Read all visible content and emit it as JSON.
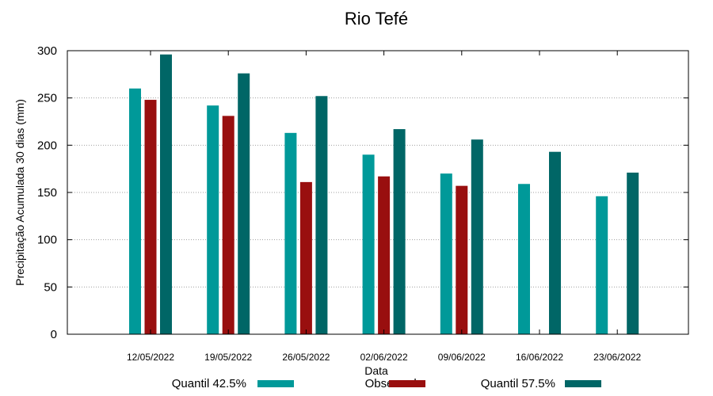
{
  "chart_data": {
    "type": "bar",
    "title": "Rio Tefé",
    "xlabel": "Data",
    "ylabel": "Precipitação Acumulada 30 dias (mm)",
    "ylim": [
      0,
      300
    ],
    "yticks": [
      0,
      50,
      100,
      150,
      200,
      250,
      300
    ],
    "grid": true,
    "legend_position": "bottom",
    "categories": [
      "12/05/2022",
      "19/05/2022",
      "26/05/2022",
      "02/06/2022",
      "09/06/2022",
      "16/06/2022",
      "23/06/2022"
    ],
    "series": [
      {
        "name": "Quantil 42.5%",
        "color": "#009999",
        "values": [
          260,
          242,
          213,
          190,
          170,
          159,
          146
        ]
      },
      {
        "name": "Observado",
        "color": "#990f0f",
        "values": [
          248,
          231,
          161,
          167,
          157,
          null,
          null
        ]
      },
      {
        "name": "Quantil 57.5%",
        "color": "#006666",
        "values": [
          296,
          276,
          252,
          217,
          206,
          193,
          171
        ]
      }
    ]
  }
}
